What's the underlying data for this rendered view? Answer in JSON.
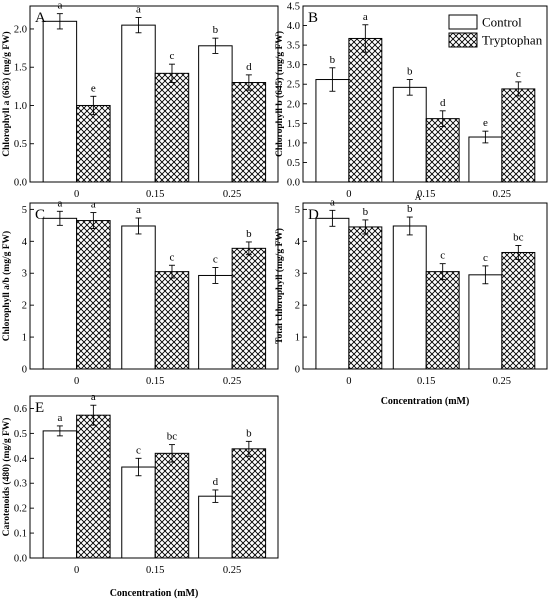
{
  "legend": {
    "control": "Control",
    "tryptophan": "Tryptophan",
    "colors": {
      "control_fill": "#ffffff",
      "tryptophan_fill": "crosshatch-black-on-white",
      "stroke": "#000000"
    }
  },
  "chart_data": [
    {
      "type": "bar",
      "panel": "A",
      "ylabel": "Chlorophyll a (663) (mg/g FW)",
      "xlabel": "",
      "categories": [
        "0",
        "0.15",
        "0.25"
      ],
      "ylim": [
        0,
        2.3
      ],
      "yticks": [
        "0.0",
        "0.5",
        "1.0",
        "1.5",
        "2.0"
      ],
      "series": [
        {
          "name": "Control",
          "values": [
            2.1,
            2.05,
            1.78
          ],
          "errors": [
            0.1,
            0.1,
            0.1
          ],
          "letters": [
            "a",
            "a",
            "b"
          ]
        },
        {
          "name": "Tryptophan",
          "values": [
            1.0,
            1.42,
            1.3
          ],
          "errors": [
            0.12,
            0.12,
            0.1
          ],
          "letters": [
            "e",
            "c",
            "d"
          ]
        }
      ]
    },
    {
      "type": "bar",
      "panel": "B",
      "ylabel": "Chlorophyll b (645) (mg/g FW)",
      "xlabel": "",
      "categories": [
        "0",
        "0.15",
        "0.25"
      ],
      "ylim": [
        0,
        4.5
      ],
      "yticks": [
        "0.0",
        "0.5",
        "1.0",
        "1.5",
        "2.0",
        "2.5",
        "3.0",
        "3.5",
        "4.0",
        "4.5"
      ],
      "series": [
        {
          "name": "Control",
          "values": [
            2.62,
            2.42,
            1.15
          ],
          "errors": [
            0.3,
            0.2,
            0.15
          ],
          "letters": [
            "b",
            "b",
            "e"
          ]
        },
        {
          "name": "Tryptophan",
          "values": [
            3.67,
            1.62,
            2.38
          ],
          "errors": [
            0.35,
            0.2,
            0.18
          ],
          "letters": [
            "a",
            "d",
            "c"
          ]
        }
      ]
    },
    {
      "type": "bar",
      "panel": "C",
      "ylabel": "Chlorophyll a/b (mg/g FW)",
      "xlabel": "",
      "categories": [
        "0",
        "0.15",
        "0.25"
      ],
      "ylim": [
        0,
        5.2
      ],
      "yticks": [
        "0",
        "1",
        "2",
        "3",
        "4",
        "5"
      ],
      "series": [
        {
          "name": "Control",
          "values": [
            4.72,
            4.48,
            2.93
          ],
          "errors": [
            0.22,
            0.25,
            0.25
          ],
          "letters": [
            "a",
            "a",
            "c"
          ]
        },
        {
          "name": "Tryptophan",
          "values": [
            4.65,
            3.05,
            3.78
          ],
          "errors": [
            0.25,
            0.2,
            0.2
          ],
          "letters": [
            "a",
            "c",
            "b"
          ]
        }
      ]
    },
    {
      "type": "bar",
      "panel": "D",
      "ylabel": "Total chlorophyll (mg/g FW)",
      "xlabel": "Concentration (mM)",
      "categories": [
        "0",
        "0.15",
        "0.25"
      ],
      "ylim": [
        0,
        5.2
      ],
      "yticks": [
        "0",
        "1",
        "2",
        "3",
        "4",
        "5"
      ],
      "annotation": "A",
      "series": [
        {
          "name": "Control",
          "values": [
            4.72,
            4.48,
            2.95
          ],
          "errors": [
            0.25,
            0.28,
            0.28
          ],
          "letters": [
            "a",
            "b",
            "c"
          ]
        },
        {
          "name": "Tryptophan",
          "values": [
            4.45,
            3.05,
            3.65
          ],
          "errors": [
            0.22,
            0.25,
            0.22
          ],
          "letters": [
            "b",
            "c",
            "bc"
          ]
        }
      ]
    },
    {
      "type": "bar",
      "panel": "E",
      "ylabel": "Carotenoids (480) (mg/g FW)",
      "xlabel": "Concentration (mM)",
      "categories": [
        "0",
        "0.15",
        "0.25"
      ],
      "ylim": [
        0,
        0.65
      ],
      "yticks": [
        "0.0",
        "0.1",
        "0.2",
        "0.3",
        "0.4",
        "0.5",
        "0.6"
      ],
      "series": [
        {
          "name": "Control",
          "values": [
            0.51,
            0.365,
            0.248
          ],
          "errors": [
            0.02,
            0.035,
            0.025
          ],
          "letters": [
            "a",
            "c",
            "d"
          ]
        },
        {
          "name": "Tryptophan",
          "values": [
            0.573,
            0.42,
            0.438
          ],
          "errors": [
            0.04,
            0.035,
            0.03
          ],
          "letters": [
            "a",
            "bc",
            "b"
          ]
        }
      ]
    }
  ]
}
